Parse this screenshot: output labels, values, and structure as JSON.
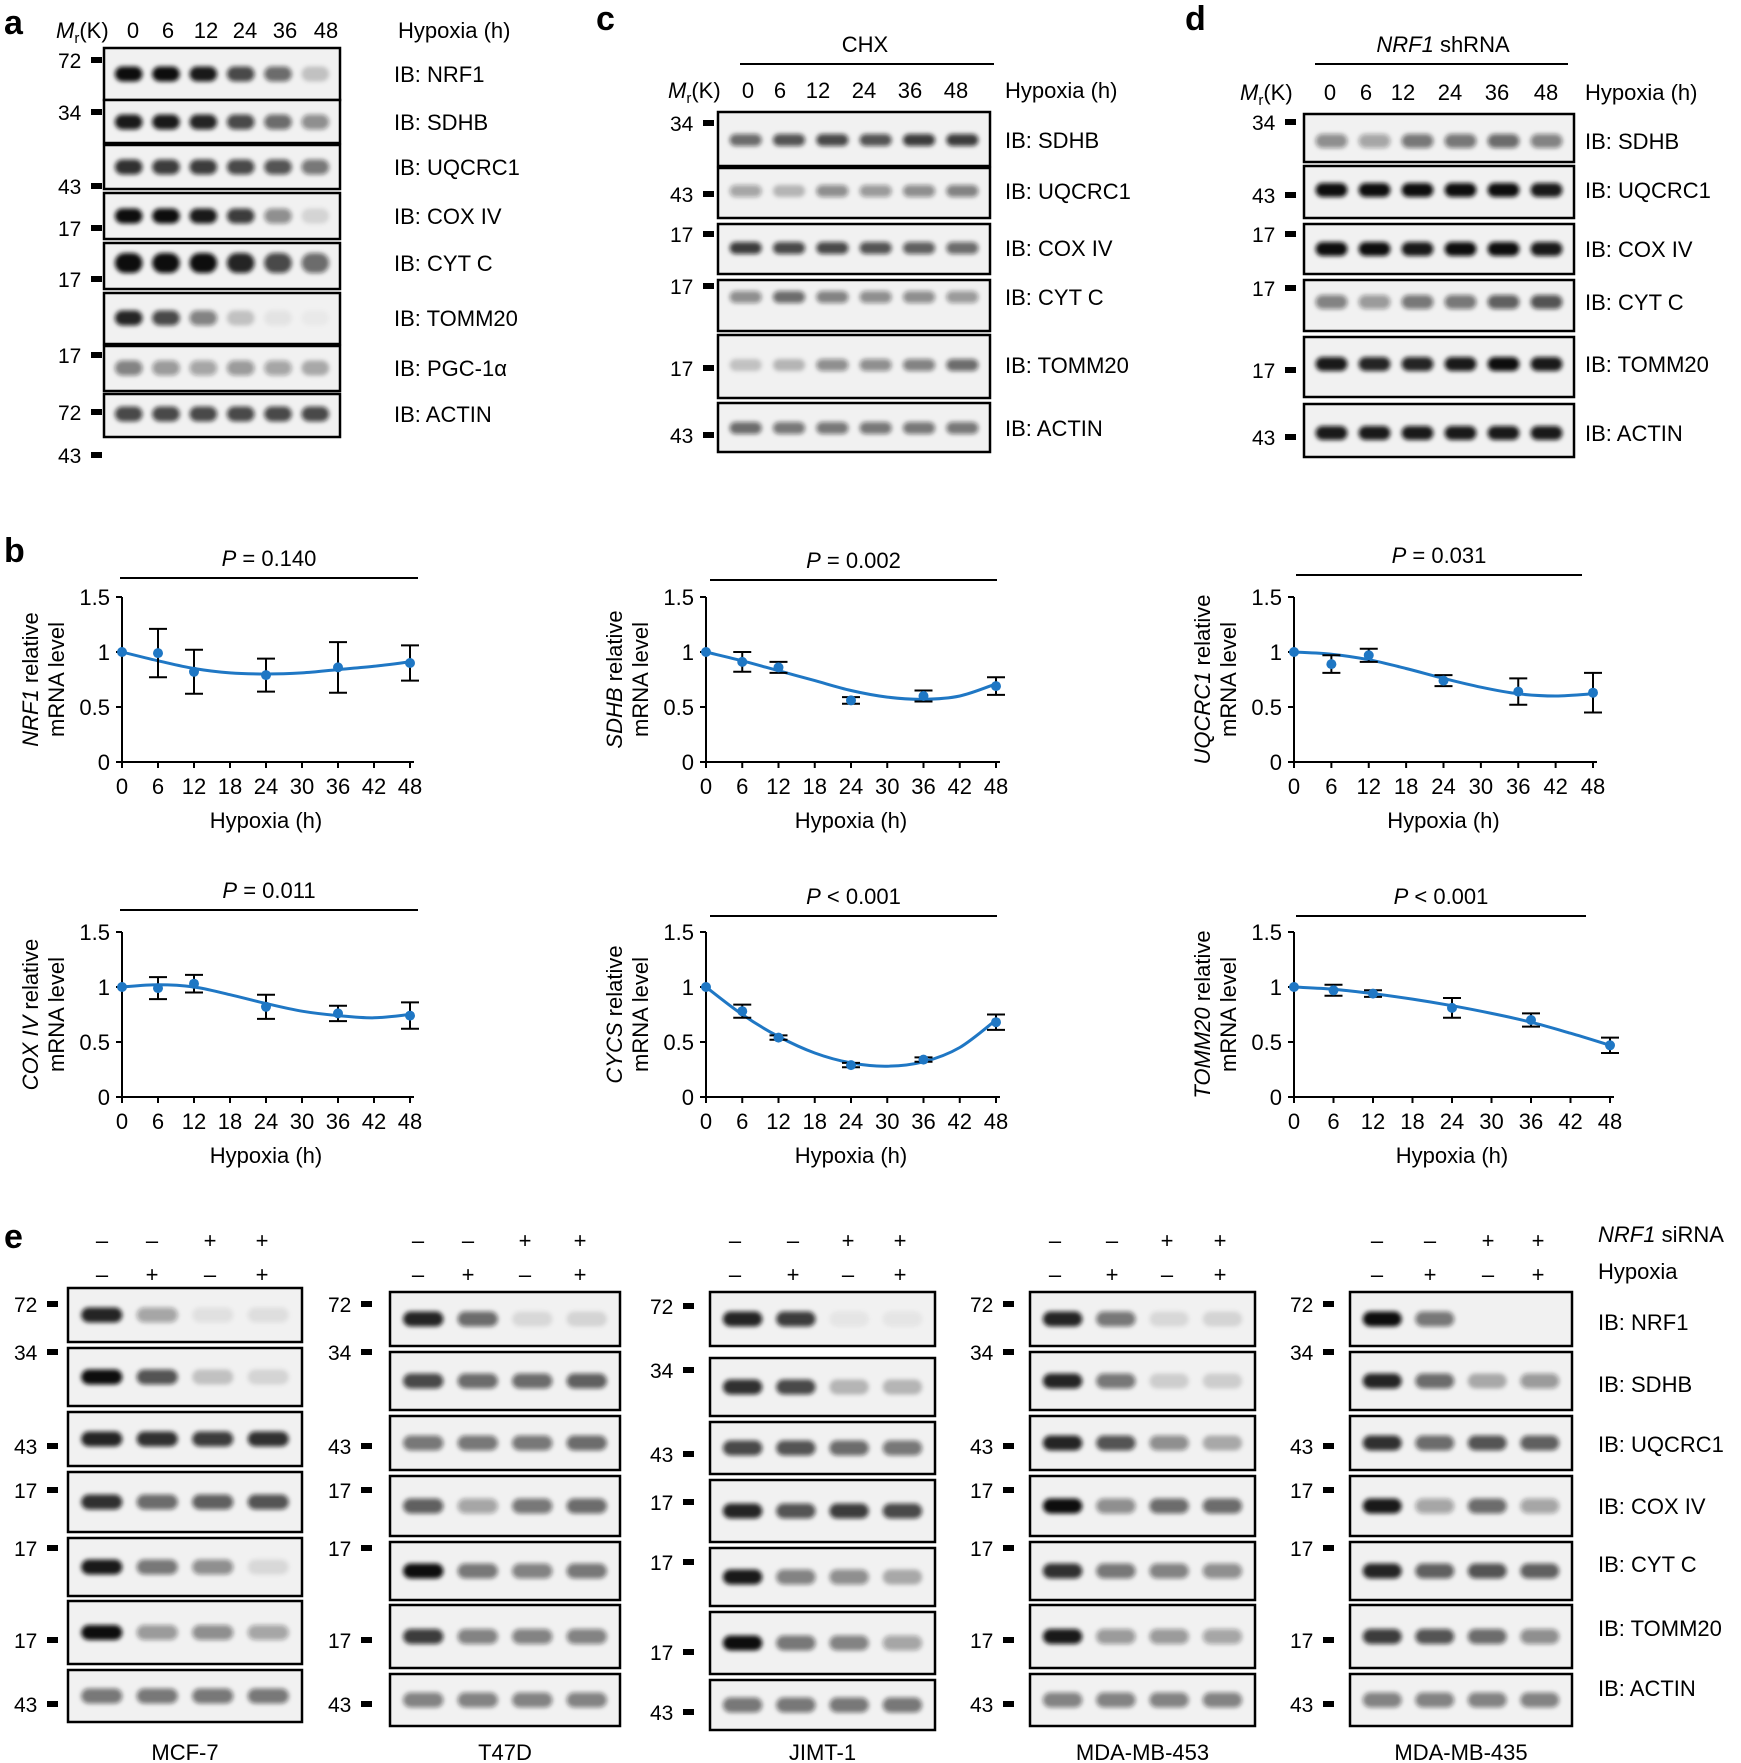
{
  "panel_letters": {
    "a": "a",
    "b": "b",
    "c": "c",
    "d": "d",
    "e": "e"
  },
  "mr_label": {
    "main": "M",
    "sub": "r",
    "unit": "(K)"
  },
  "time_labels": [
    "0",
    "6",
    "12",
    "24",
    "36",
    "48"
  ],
  "hypoxia_label": "Hypoxia (h)",
  "panel_a": {
    "rows": [
      {
        "ib": "IB: NRF1",
        "mw": "72"
      },
      {
        "ib": "IB: SDHB",
        "mw": "34"
      },
      {
        "ib": "IB: UQCRC1",
        "mw": "43"
      },
      {
        "ib": "IB: COX IV",
        "mw": "17"
      },
      {
        "ib": "IB: CYT C",
        "mw": "17"
      },
      {
        "ib": "IB: TOMM20",
        "mw": "17"
      },
      {
        "ib": "IB: PGC-1α",
        "mw": "72"
      },
      {
        "ib": "IB: ACTIN",
        "mw": "43"
      }
    ]
  },
  "panel_c": {
    "treatment": "CHX",
    "rows": [
      {
        "ib": "IB: SDHB",
        "mw": "34"
      },
      {
        "ib": "IB: UQCRC1",
        "mw": "43"
      },
      {
        "ib": "IB: COX IV",
        "mw": "17"
      },
      {
        "ib": "IB: CYT C",
        "mw": "17"
      },
      {
        "ib": "IB: TOMM20",
        "mw": "17"
      },
      {
        "ib": "IB: ACTIN",
        "mw": "43"
      }
    ]
  },
  "panel_d": {
    "treatment_gene": "NRF1",
    "treatment_rest": " shRNA",
    "rows": [
      {
        "ib": "IB: SDHB",
        "mw": "34"
      },
      {
        "ib": "IB: UQCRC1",
        "mw": "43"
      },
      {
        "ib": "IB: COX IV",
        "mw": "17"
      },
      {
        "ib": "IB: CYT C",
        "mw": "17"
      },
      {
        "ib": "IB: TOMM20",
        "mw": "17"
      },
      {
        "ib": "IB: ACTIN",
        "mw": "43"
      }
    ]
  },
  "panel_e": {
    "sirna_gene": "NRF1",
    "sirna_rest": " siRNA",
    "hypoxia": "Hypoxia",
    "sirna_signs": [
      "–",
      "–",
      "+",
      "+"
    ],
    "hypoxia_signs": [
      "–",
      "+",
      "–",
      "+"
    ],
    "cell_lines": [
      "MCF-7",
      "T47D",
      "JIMT-1",
      "MDA-MB-453",
      "MDA-MB-435"
    ],
    "ib_labels": [
      "IB: NRF1",
      "IB: SDHB",
      "IB: UQCRC1",
      "IB: COX IV",
      "IB: CYT C",
      "IB: TOMM20",
      "IB: ACTIN"
    ],
    "mw": [
      "72",
      "34",
      "43",
      "17",
      "17",
      "17",
      "43"
    ]
  },
  "chart_data": [
    {
      "type": "scatter",
      "gene": "NRF1",
      "ylabel_rest": " relative",
      "ylabel2": "mRNA level",
      "xlabel": "Hypoxia (h)",
      "p_text": "= 0.140",
      "x": [
        0,
        6,
        12,
        24,
        36,
        48
      ],
      "y": [
        1.0,
        0.99,
        0.82,
        0.79,
        0.86,
        0.9
      ],
      "err": [
        0,
        0.22,
        0.2,
        0.15,
        0.23,
        0.16
      ],
      "fit": [
        [
          0,
          1.0
        ],
        [
          6,
          0.92
        ],
        [
          12,
          0.85
        ],
        [
          18,
          0.81
        ],
        [
          24,
          0.8
        ],
        [
          30,
          0.81
        ],
        [
          36,
          0.84
        ],
        [
          42,
          0.87
        ],
        [
          48,
          0.91
        ]
      ],
      "ylim": [
        0,
        1.5
      ],
      "yticks": [
        "0",
        "0.5",
        "1",
        "1.5"
      ],
      "xticks": [
        "0",
        "6",
        "12",
        "18",
        "24",
        "30",
        "36",
        "42",
        "48"
      ]
    },
    {
      "type": "scatter",
      "gene": "SDHB",
      "ylabel_rest": " relative",
      "ylabel2": "mRNA level",
      "xlabel": "Hypoxia (h)",
      "p_text": "= 0.002",
      "x": [
        0,
        6,
        12,
        24,
        36,
        48
      ],
      "y": [
        1.0,
        0.91,
        0.86,
        0.56,
        0.6,
        0.69
      ],
      "err": [
        0,
        0.09,
        0.05,
        0.03,
        0.05,
        0.08
      ],
      "fit": [
        [
          0,
          1.0
        ],
        [
          6,
          0.92
        ],
        [
          12,
          0.83
        ],
        [
          18,
          0.74
        ],
        [
          24,
          0.65
        ],
        [
          30,
          0.59
        ],
        [
          36,
          0.57
        ],
        [
          42,
          0.6
        ],
        [
          48,
          0.71
        ]
      ],
      "ylim": [
        0,
        1.5
      ],
      "yticks": [
        "0",
        "0.5",
        "1",
        "1.5"
      ],
      "xticks": [
        "0",
        "6",
        "12",
        "18",
        "24",
        "30",
        "36",
        "42",
        "48"
      ]
    },
    {
      "type": "scatter",
      "gene": "UQCRC1",
      "ylabel_rest": " relative",
      "ylabel2": "mRNA level",
      "xlabel": "Hypoxia (h)",
      "p_text": "= 0.031",
      "x": [
        0,
        6,
        12,
        24,
        36,
        48
      ],
      "y": [
        1.0,
        0.89,
        0.97,
        0.74,
        0.64,
        0.63
      ],
      "err": [
        0,
        0.08,
        0.06,
        0.05,
        0.12,
        0.18
      ],
      "fit": [
        [
          0,
          1.0
        ],
        [
          6,
          0.98
        ],
        [
          12,
          0.93
        ],
        [
          18,
          0.85
        ],
        [
          24,
          0.76
        ],
        [
          30,
          0.68
        ],
        [
          36,
          0.62
        ],
        [
          42,
          0.6
        ],
        [
          48,
          0.62
        ]
      ],
      "ylim": [
        0,
        1.5
      ],
      "yticks": [
        "0",
        "0.5",
        "1",
        "1.5"
      ],
      "xticks": [
        "0",
        "6",
        "12",
        "18",
        "24",
        "30",
        "36",
        "42",
        "48"
      ]
    },
    {
      "type": "scatter",
      "gene": "COX IV",
      "ylabel_rest": " relative",
      "ylabel2": "mRNA level",
      "xlabel": "Hypoxia (h)",
      "p_text": "= 0.011",
      "x": [
        0,
        6,
        12,
        24,
        36,
        48
      ],
      "y": [
        1.0,
        0.99,
        1.03,
        0.82,
        0.76,
        0.74
      ],
      "err": [
        0,
        0.1,
        0.08,
        0.11,
        0.07,
        0.12
      ],
      "fit": [
        [
          0,
          1.0
        ],
        [
          6,
          1.02
        ],
        [
          12,
          1.0
        ],
        [
          18,
          0.93
        ],
        [
          24,
          0.85
        ],
        [
          30,
          0.78
        ],
        [
          36,
          0.74
        ],
        [
          42,
          0.72
        ],
        [
          48,
          0.75
        ]
      ],
      "ylim": [
        0,
        1.5
      ],
      "yticks": [
        "0",
        "0.5",
        "1",
        "1.5"
      ],
      "xticks": [
        "0",
        "6",
        "12",
        "18",
        "24",
        "30",
        "36",
        "42",
        "48"
      ]
    },
    {
      "type": "scatter",
      "gene": "CYCS",
      "ylabel_rest": " relative",
      "ylabel2": "mRNA level",
      "xlabel": "Hypoxia (h)",
      "p_text": "< 0.001",
      "x": [
        0,
        6,
        12,
        24,
        36,
        48
      ],
      "y": [
        1.0,
        0.78,
        0.54,
        0.29,
        0.34,
        0.68
      ],
      "err": [
        0,
        0.06,
        0.02,
        0.02,
        0.02,
        0.07
      ],
      "fit": [
        [
          0,
          1.0
        ],
        [
          6,
          0.75
        ],
        [
          12,
          0.55
        ],
        [
          18,
          0.4
        ],
        [
          24,
          0.31
        ],
        [
          30,
          0.28
        ],
        [
          36,
          0.32
        ],
        [
          42,
          0.45
        ],
        [
          48,
          0.7
        ]
      ],
      "ylim": [
        0,
        1.5
      ],
      "yticks": [
        "0",
        "0.5",
        "1",
        "1.5"
      ],
      "xticks": [
        "0",
        "6",
        "12",
        "18",
        "24",
        "30",
        "36",
        "42",
        "48"
      ]
    },
    {
      "type": "scatter",
      "gene": "TOMM20",
      "ylabel_rest": " relative",
      "ylabel2": "mRNA level",
      "xlabel": "Hypoxia (h)",
      "p_text": "< 0.001",
      "x": [
        0,
        6,
        12,
        24,
        36,
        48
      ],
      "y": [
        1.0,
        0.97,
        0.94,
        0.81,
        0.7,
        0.47
      ],
      "err": [
        0,
        0.05,
        0.03,
        0.09,
        0.06,
        0.07
      ],
      "fit": [
        [
          0,
          1.0
        ],
        [
          6,
          0.98
        ],
        [
          12,
          0.94
        ],
        [
          18,
          0.89
        ],
        [
          24,
          0.83
        ],
        [
          30,
          0.76
        ],
        [
          36,
          0.68
        ],
        [
          42,
          0.58
        ],
        [
          48,
          0.47
        ]
      ],
      "ylim": [
        0,
        1.5
      ],
      "yticks": [
        "0",
        "0.5",
        "1",
        "1.5"
      ],
      "xticks": [
        "0",
        "6",
        "12",
        "18",
        "24",
        "30",
        "36",
        "42",
        "48"
      ]
    }
  ],
  "colors": {
    "series": "#1f77c4",
    "text": "#000000"
  }
}
